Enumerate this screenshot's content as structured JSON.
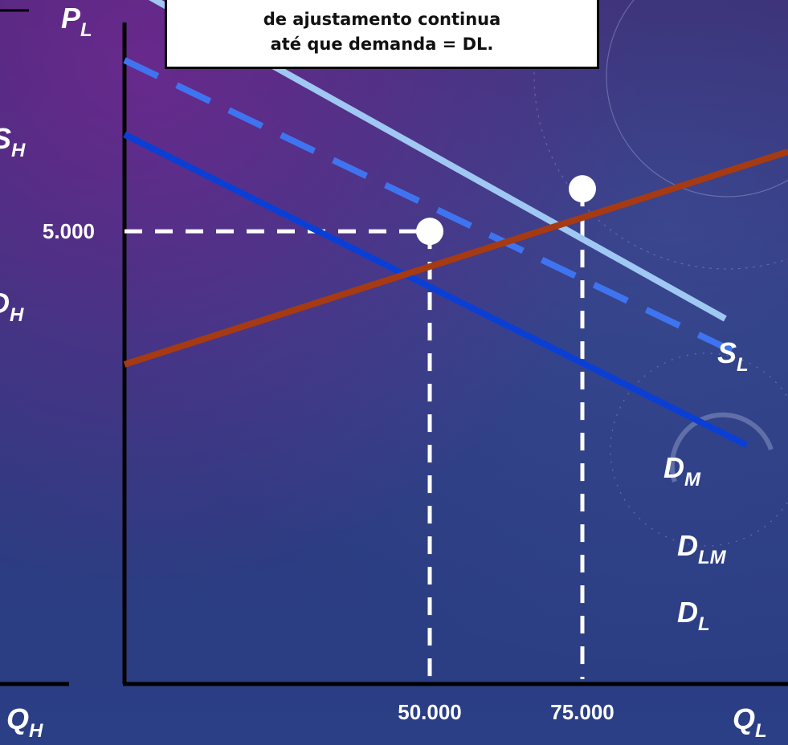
{
  "callout": {
    "line1": "de ajustamento continua",
    "line2": "até que demanda = DL."
  },
  "left_panel": {
    "supply_label": "S",
    "supply_sub": "H",
    "demand_label": "D",
    "demand_sub": "H",
    "x_axis_label": "Q",
    "x_axis_sub": "H"
  },
  "colors": {
    "S_L": "#a63a12",
    "D_M": "#9fc8f2",
    "D_LM": "#3f74f0",
    "D_L": "#0a3fd6",
    "axes": "#000000",
    "guides": "#ffffff"
  },
  "chart_data": {
    "type": "line",
    "y_axis_label": {
      "main": "P",
      "sub": "L"
    },
    "x_axis_label": {
      "main": "Q",
      "sub": "L"
    },
    "x_ticks": [
      {
        "value": 50000,
        "label": "50.000"
      },
      {
        "value": 75000,
        "label": "75.000"
      }
    ],
    "y_ticks": [
      {
        "value": 5000,
        "label": "5.000"
      }
    ],
    "series": [
      {
        "key": "D_M",
        "name": "D",
        "sub": "M",
        "style": "solid",
        "x": [
          0,
          98400
        ],
        "y": [
          7745,
          4035
        ]
      },
      {
        "key": "D_LM",
        "name": "D",
        "sub": "LM",
        "style": "dashed",
        "x": [
          0,
          101400
        ],
        "y": [
          6890,
          3620
        ]
      },
      {
        "key": "D_L",
        "name": "D",
        "sub": "L",
        "style": "solid",
        "x": [
          0,
          101900
        ],
        "y": [
          6070,
          2640
        ]
      },
      {
        "key": "S_L",
        "name": "S",
        "sub": "L",
        "style": "solid",
        "x": [
          0,
          108700
        ],
        "y": [
          3530,
          5880
        ]
      }
    ],
    "points": [
      {
        "x": 50000,
        "y": 5000
      },
      {
        "x": 75000,
        "y": 5470
      }
    ],
    "guides": [
      {
        "x": 50000,
        "y": 5000
      },
      {
        "x": 75000,
        "y": 5470
      }
    ]
  }
}
